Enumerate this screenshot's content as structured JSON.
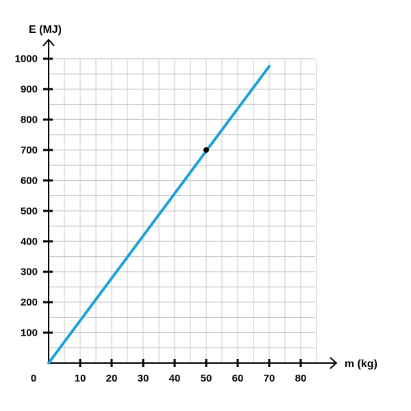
{
  "chart_data": {
    "type": "line",
    "xlabel": "m (kg)",
    "ylabel": "E (MJ)",
    "origin_label": "0",
    "xlim": [
      0,
      85
    ],
    "ylim": [
      0,
      1000
    ],
    "x_ticks": [
      10,
      20,
      30,
      40,
      50,
      60,
      70,
      80
    ],
    "y_ticks": [
      100,
      200,
      300,
      400,
      500,
      600,
      700,
      800,
      900,
      1000
    ],
    "x_minor_step": 5,
    "y_minor_step": 50,
    "grid": true,
    "series": [
      {
        "x": [
          0,
          70
        ],
        "y": [
          0,
          975
        ],
        "color": "#1ea0d8"
      }
    ],
    "points": [
      {
        "x": 50,
        "y": 700,
        "color": "#000000"
      }
    ]
  }
}
